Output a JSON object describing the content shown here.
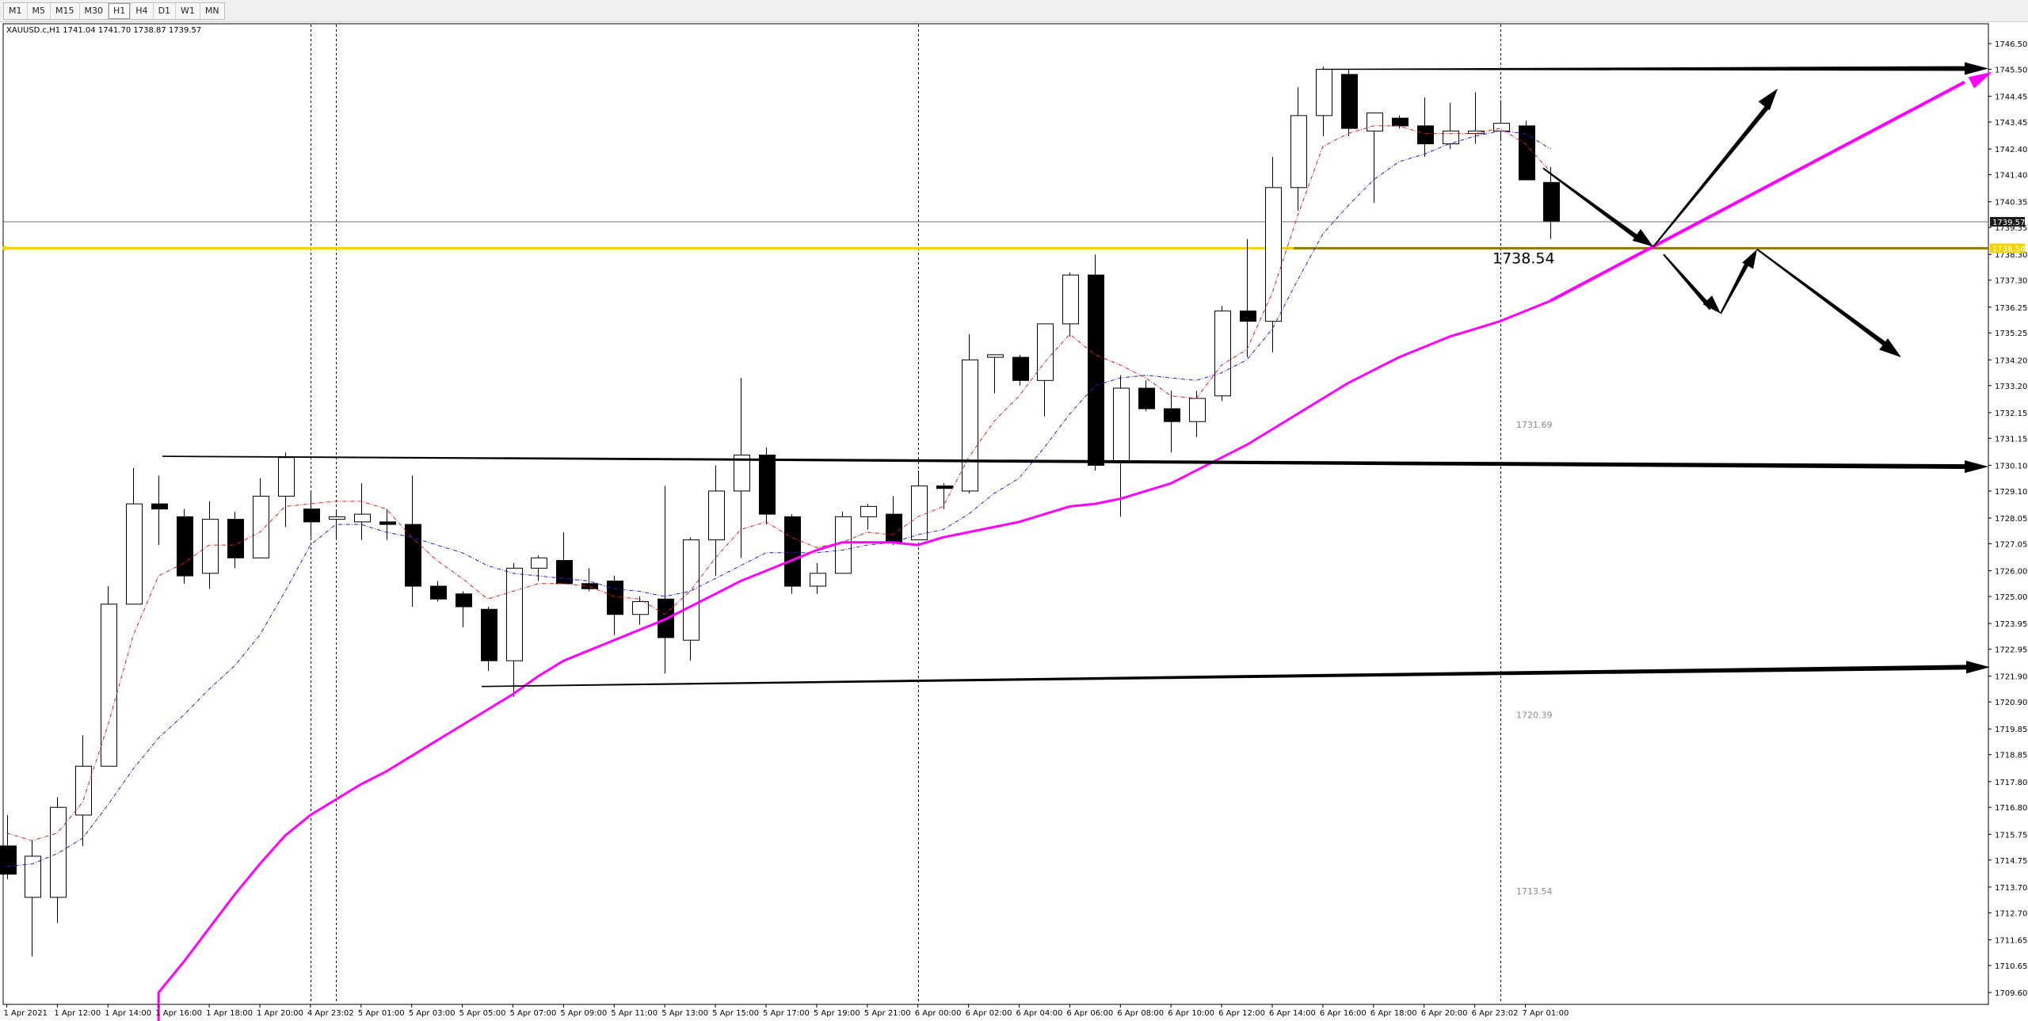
{
  "timeframes": [
    "M1",
    "M5",
    "M15",
    "M30",
    "H1",
    "H4",
    "D1",
    "W1",
    "MN"
  ],
  "active_timeframe": "H1",
  "chart_data": {
    "type": "candlestick",
    "symbol_info": "XAUUSD.c,H1  1741.04 1741.70 1738.87 1739.57",
    "price_axis_ticks": [
      "1746.50",
      "1745.50",
      "1744.45",
      "1743.45",
      "1742.40",
      "1741.40",
      "1740.35",
      "1739.35",
      "1738.30",
      "1737.30",
      "1736.25",
      "1735.25",
      "1734.20",
      "1733.20",
      "1732.15",
      "1731.15",
      "1730.10",
      "1729.10",
      "1728.05",
      "1727.05",
      "1726.00",
      "1725.00",
      "1723.95",
      "1722.95",
      "1721.90",
      "1720.90",
      "1719.85",
      "1718.85",
      "1717.80",
      "1716.80",
      "1715.75",
      "1714.75",
      "1713.70",
      "1712.70",
      "1711.65",
      "1710.65",
      "1709.60"
    ],
    "time_axis_labels": [
      {
        "i": 0,
        "t": "1 Apr 2021"
      },
      {
        "i": 2,
        "t": "1 Apr 12:00"
      },
      {
        "i": 4,
        "t": "1 Apr 14:00"
      },
      {
        "i": 6,
        "t": "1 Apr 16:00"
      },
      {
        "i": 8,
        "t": "1 Apr 18:00"
      },
      {
        "i": 10,
        "t": "1 Apr 20:00"
      },
      {
        "i": 12,
        "t": "4 Apr 23:02"
      },
      {
        "i": 14,
        "t": "5 Apr 01:00"
      },
      {
        "i": 16,
        "t": "5 Apr 03:00"
      },
      {
        "i": 18,
        "t": "5 Apr 05:00"
      },
      {
        "i": 20,
        "t": "5 Apr 07:00"
      },
      {
        "i": 22,
        "t": "5 Apr 09:00"
      },
      {
        "i": 24,
        "t": "5 Apr 11:00"
      },
      {
        "i": 26,
        "t": "5 Apr 13:00"
      },
      {
        "i": 28,
        "t": "5 Apr 15:00"
      },
      {
        "i": 30,
        "t": "5 Apr 17:00"
      },
      {
        "i": 32,
        "t": "5 Apr 19:00"
      },
      {
        "i": 34,
        "t": "5 Apr 21:00"
      },
      {
        "i": 36,
        "t": "6 Apr 00:00"
      },
      {
        "i": 38,
        "t": "6 Apr 02:00"
      },
      {
        "i": 40,
        "t": "6 Apr 04:00"
      },
      {
        "i": 42,
        "t": "6 Apr 06:00"
      },
      {
        "i": 44,
        "t": "6 Apr 08:00"
      },
      {
        "i": 46,
        "t": "6 Apr 10:00"
      },
      {
        "i": 48,
        "t": "6 Apr 12:00"
      },
      {
        "i": 50,
        "t": "6 Apr 14:00"
      },
      {
        "i": 52,
        "t": "6 Apr 16:00"
      },
      {
        "i": 54,
        "t": "6 Apr 18:00"
      },
      {
        "i": 56,
        "t": "6 Apr 20:00"
      },
      {
        "i": 58,
        "t": "6 Apr 23:02"
      },
      {
        "i": 60,
        "t": "7 Apr 01:00"
      }
    ],
    "candles": [
      [
        1715.3,
        1716.5,
        1714.0,
        1714.2
      ],
      [
        1713.3,
        1715.5,
        1711.0,
        1714.9
      ],
      [
        1713.3,
        1717.2,
        1712.3,
        1716.8
      ],
      [
        1716.5,
        1719.6,
        1715.3,
        1718.4
      ],
      [
        1718.4,
        1725.4,
        1718.4,
        1724.7
      ],
      [
        1724.7,
        1730.0,
        1724.7,
        1728.6
      ],
      [
        1728.6,
        1729.7,
        1727.0,
        1728.4
      ],
      [
        1728.1,
        1728.4,
        1725.5,
        1725.8
      ],
      [
        1725.9,
        1728.7,
        1725.3,
        1728.0
      ],
      [
        1728.0,
        1728.3,
        1726.1,
        1726.5
      ],
      [
        1726.5,
        1729.6,
        1726.5,
        1728.9
      ],
      [
        1728.9,
        1730.6,
        1727.7,
        1730.4
      ],
      [
        1728.4,
        1729.1,
        1727.3,
        1727.9
      ],
      [
        1728.0,
        1728.3,
        1727.2,
        1728.1
      ],
      [
        1727.9,
        1729.4,
        1727.2,
        1728.2
      ],
      [
        1727.9,
        1728.4,
        1727.2,
        1727.8
      ],
      [
        1727.8,
        1729.7,
        1724.6,
        1725.4
      ],
      [
        1725.4,
        1725.6,
        1724.8,
        1724.9
      ],
      [
        1725.1,
        1725.2,
        1723.8,
        1724.6
      ],
      [
        1724.5,
        1724.6,
        1722.1,
        1722.5
      ],
      [
        1722.5,
        1726.3,
        1721.1,
        1726.1
      ],
      [
        1726.1,
        1726.6,
        1725.6,
        1726.5
      ],
      [
        1726.4,
        1727.5,
        1725.5,
        1725.5
      ],
      [
        1725.5,
        1726.1,
        1725.2,
        1725.3
      ],
      [
        1725.6,
        1725.8,
        1723.5,
        1724.3
      ],
      [
        1724.3,
        1725.0,
        1723.9,
        1724.8
      ],
      [
        1724.9,
        1729.3,
        1722.0,
        1723.4
      ],
      [
        1723.3,
        1727.3,
        1722.5,
        1727.2
      ],
      [
        1727.2,
        1730.1,
        1725.8,
        1729.1
      ],
      [
        1729.1,
        1733.5,
        1726.5,
        1730.5
      ],
      [
        1730.5,
        1730.8,
        1727.8,
        1728.2
      ],
      [
        1728.1,
        1728.2,
        1725.1,
        1725.4
      ],
      [
        1725.4,
        1726.3,
        1725.1,
        1725.9
      ],
      [
        1725.9,
        1728.3,
        1725.9,
        1728.1
      ],
      [
        1728.1,
        1728.6,
        1727.6,
        1728.5
      ],
      [
        1728.2,
        1728.9,
        1727.0,
        1727.1
      ],
      [
        1727.2,
        1729.9,
        1727.2,
        1729.3
      ],
      [
        1729.3,
        1729.4,
        1728.4,
        1729.2
      ],
      [
        1729.1,
        1735.2,
        1729.0,
        1734.2
      ],
      [
        1734.3,
        1734.4,
        1732.9,
        1734.4
      ],
      [
        1734.3,
        1734.4,
        1733.2,
        1733.4
      ],
      [
        1733.4,
        1735.6,
        1732.0,
        1735.6
      ],
      [
        1735.6,
        1737.6,
        1735.1,
        1737.5
      ],
      [
        1737.5,
        1738.3,
        1729.9,
        1730.1
      ],
      [
        1730.2,
        1733.6,
        1728.1,
        1733.1
      ],
      [
        1733.1,
        1733.4,
        1732.2,
        1732.3
      ],
      [
        1732.3,
        1733.0,
        1730.6,
        1731.8
      ],
      [
        1731.8,
        1733.0,
        1731.2,
        1732.7
      ],
      [
        1732.8,
        1736.3,
        1732.6,
        1736.1
      ],
      [
        1736.1,
        1738.9,
        1734.3,
        1735.7
      ],
      [
        1735.7,
        1742.1,
        1734.5,
        1740.9
      ],
      [
        1740.9,
        1744.8,
        1740.0,
        1743.7
      ],
      [
        1743.7,
        1745.6,
        1742.9,
        1745.5
      ],
      [
        1745.3,
        1745.5,
        1742.9,
        1743.2
      ],
      [
        1743.1,
        1743.8,
        1740.3,
        1743.8
      ],
      [
        1743.6,
        1743.7,
        1743.2,
        1743.3
      ],
      [
        1743.3,
        1744.4,
        1742.1,
        1742.6
      ],
      [
        1742.6,
        1744.2,
        1742.4,
        1743.1
      ],
      [
        1743.0,
        1744.6,
        1742.6,
        1743.1
      ],
      [
        1743.1,
        1744.3,
        1742.7,
        1743.4
      ],
      [
        1743.3,
        1743.5,
        1741.2,
        1741.2
      ],
      [
        1741.1,
        1741.7,
        1738.9,
        1739.6
      ]
    ],
    "current_price": "1739.57",
    "current_price_value": 1739.57,
    "marked_level": "1738.54",
    "marked_level_value": 1738.54,
    "fib_levels": [
      {
        "label": "1731.69",
        "value": 1731.69
      },
      {
        "label": "1720.39",
        "value": 1720.39
      },
      {
        "label": "1713.54",
        "value": 1713.54
      }
    ],
    "ma_fast_red": [
      1715.8,
      1715.5,
      1715.8,
      1717.0,
      1720.0,
      1723.5,
      1725.8,
      1726.3,
      1727.0,
      1727.0,
      1727.5,
      1728.5,
      1728.6,
      1728.7,
      1728.7,
      1728.4,
      1727.3,
      1726.4,
      1725.7,
      1724.9,
      1725.2,
      1725.5,
      1725.5,
      1725.4,
      1725.0,
      1724.9,
      1724.3,
      1725.2,
      1726.5,
      1727.6,
      1727.9,
      1727.3,
      1726.9,
      1727.1,
      1727.5,
      1727.4,
      1728.1,
      1728.5,
      1730.4,
      1731.8,
      1732.8,
      1734.1,
      1735.2,
      1734.4,
      1734.0,
      1733.5,
      1732.8,
      1732.7,
      1734.0,
      1734.6,
      1736.8,
      1739.8,
      1742.5,
      1743.0,
      1743.3,
      1743.3,
      1743.0,
      1743.0,
      1743.0,
      1743.2,
      1742.6,
      1741.5
    ],
    "ma_slow_blue": [
      1714.5,
      1714.6,
      1715.0,
      1715.6,
      1716.9,
      1718.3,
      1719.5,
      1720.4,
      1721.4,
      1722.3,
      1723.5,
      1725.2,
      1727.0,
      1727.8,
      1727.8,
      1727.5,
      1727.3,
      1727.0,
      1726.7,
      1726.2,
      1725.9,
      1725.8,
      1725.7,
      1725.6,
      1725.3,
      1725.2,
      1725.0,
      1725.2,
      1725.7,
      1726.2,
      1726.7,
      1726.7,
      1726.7,
      1726.8,
      1727.0,
      1727.1,
      1727.4,
      1727.6,
      1728.2,
      1729.0,
      1729.6,
      1730.8,
      1732.1,
      1733.2,
      1733.5,
      1733.6,
      1733.5,
      1733.4,
      1733.7,
      1734.2,
      1735.4,
      1737.3,
      1739.1,
      1740.2,
      1741.2,
      1741.9,
      1742.2,
      1742.6,
      1742.9,
      1743.1,
      1743.0,
      1742.4
    ],
    "ma_long_magenta": [
      null,
      null,
      null,
      null,
      null,
      null,
      1709.6,
      1710.8,
      1712.1,
      1713.4,
      1714.6,
      1715.7,
      1716.5,
      1717.1,
      1717.7,
      1718.2,
      1718.8,
      1719.4,
      1720.0,
      1720.6,
      1721.2,
      1721.9,
      1722.5,
      1722.9,
      1723.3,
      1723.7,
      1724.1,
      1724.6,
      1725.1,
      1725.6,
      1726.0,
      1726.4,
      1726.8,
      1727.1,
      1727.1,
      1727.1,
      1727.0,
      1727.3,
      1727.5,
      1727.7,
      1727.9,
      1728.2,
      1728.5,
      1728.6,
      1728.8,
      1729.1,
      1729.4,
      1729.9,
      1730.4,
      1730.9,
      1731.5,
      1732.1,
      1732.7,
      1733.3,
      1733.8,
      1734.3,
      1734.7,
      1735.1,
      1735.4,
      1735.7,
      1736.1,
      1736.5
    ]
  }
}
